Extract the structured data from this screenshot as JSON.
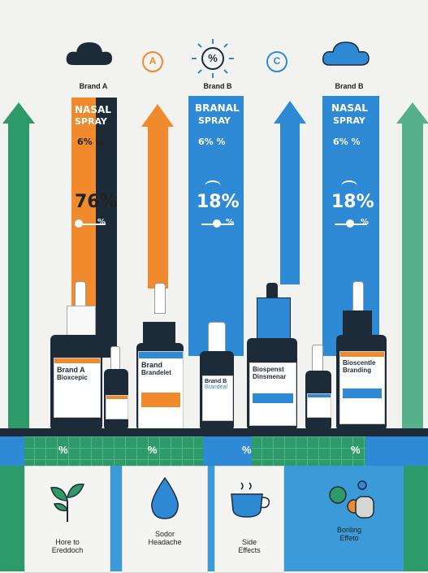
{
  "header": {
    "brand_a": "Brand A",
    "brand_b1": "Brand B",
    "brand_b2": "Brand B",
    "badge_a": "A",
    "badge_pct": "%",
    "badge_c": "C"
  },
  "panels": {
    "orange": {
      "title1": "NASAL",
      "title2": "SPRAY",
      "small": "6%  %",
      "big": "76%",
      "marker": "%"
    },
    "blue1": {
      "title1": "BRANAL",
      "title2": "SPRAY",
      "small": "6%  %",
      "big": "18%",
      "marker": "%"
    },
    "blue2": {
      "title1": "NASAL",
      "title2": "SPRAY",
      "small": "6%  %",
      "big": "18%",
      "marker": "%"
    }
  },
  "bottles": {
    "b1": {
      "line1": "Brand A",
      "line2": "Bioxcepic"
    },
    "b2": {
      "line1": "Brand",
      "line2": "Brandelet"
    },
    "b3": {
      "line1": "Brand B",
      "line2": "Brandeal"
    },
    "b4": {
      "line1": "Biospenst",
      "line2": "Dinsmenar"
    },
    "b5": {
      "line1": "Bioscentle",
      "line2": "Branding"
    }
  },
  "strip": {
    "marks": [
      "%",
      "%",
      "%",
      "%"
    ]
  },
  "cards": [
    {
      "line1": "Hore to",
      "line2": "Ereddoch",
      "icon": "leaf-icon"
    },
    {
      "line1": "Sodor",
      "line2": "Headache",
      "icon": "water-drop-icon"
    },
    {
      "line1": "Side",
      "line2": "Effects",
      "icon": "cup-icon"
    },
    {
      "line1": "Boriling",
      "line2": "Effeto",
      "icon": "pills-icon"
    }
  ],
  "colors": {
    "orange": "#f08a2c",
    "blue": "#2f8ad6",
    "green": "#2e9a6a",
    "dark": "#1d2b38"
  }
}
